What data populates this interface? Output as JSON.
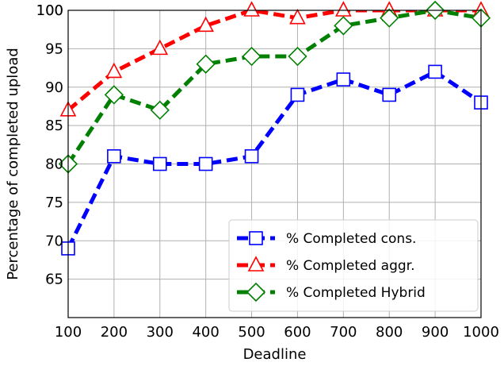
{
  "chart_data": {
    "type": "line",
    "title": "",
    "xlabel": "Deadline",
    "ylabel": "Percentage of completed upload",
    "xlim": [
      100,
      1000
    ],
    "ylim": [
      60,
      100
    ],
    "xticks": [
      100,
      200,
      300,
      400,
      500,
      600,
      700,
      800,
      900,
      1000
    ],
    "yticks": [
      65,
      70,
      75,
      80,
      85,
      90,
      95,
      100
    ],
    "grid": true,
    "legend_position": "bottom-right",
    "x": [
      100,
      200,
      300,
      400,
      500,
      600,
      700,
      800,
      900,
      1000
    ],
    "series": [
      {
        "name": "% Completed cons.",
        "color": "#0000ff",
        "marker": "square",
        "values": [
          69,
          81,
          80,
          80,
          81,
          89,
          91,
          89,
          92,
          88
        ]
      },
      {
        "name": "% Completed aggr.",
        "color": "#ff0000",
        "marker": "triangle",
        "values": [
          87,
          92,
          95,
          98,
          100,
          99,
          100,
          100,
          100,
          100
        ]
      },
      {
        "name": "% Completed Hybrid",
        "color": "#008000",
        "marker": "diamond",
        "values": [
          80,
          89,
          87,
          93,
          94,
          94,
          98,
          99,
          100,
          99
        ]
      }
    ]
  }
}
